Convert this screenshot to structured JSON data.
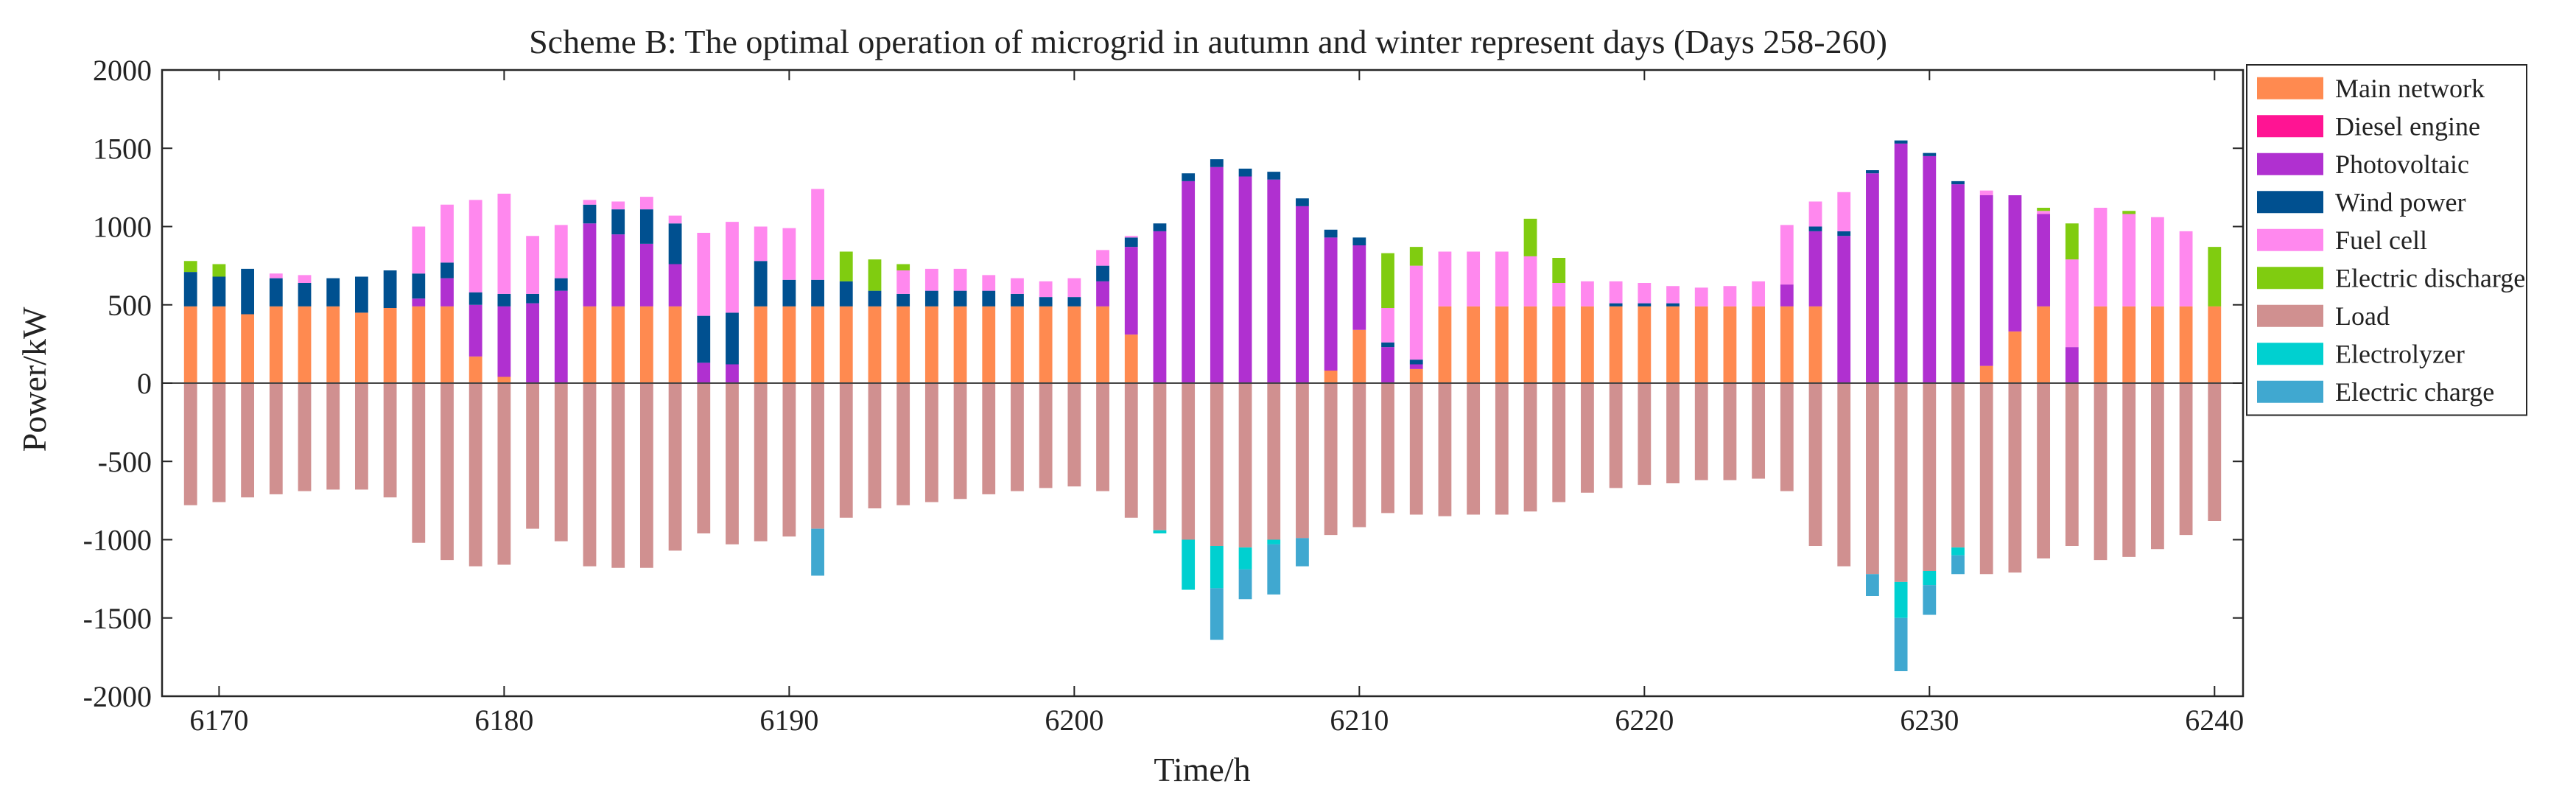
{
  "chart_data": {
    "type": "bar",
    "stacked": true,
    "title": "Scheme B: The optimal operation of microgrid in autumn and winter represent days (Days 258-260)",
    "xlabel": "Time/h",
    "ylabel": "Power/kW",
    "xlim": [
      6168,
      6241
    ],
    "ylim": [
      -2000,
      2000
    ],
    "xticks": [
      6170,
      6180,
      6190,
      6200,
      6210,
      6220,
      6230,
      6240
    ],
    "yticks": [
      2000,
      1500,
      1000,
      500,
      0,
      -500,
      -1000,
      -1500,
      -2000
    ],
    "legend_position": "top-right",
    "x": [
      6169,
      6170,
      6171,
      6172,
      6173,
      6174,
      6175,
      6176,
      6177,
      6178,
      6179,
      6180,
      6181,
      6182,
      6183,
      6184,
      6185,
      6186,
      6187,
      6188,
      6189,
      6190,
      6191,
      6192,
      6193,
      6194,
      6195,
      6196,
      6197,
      6198,
      6199,
      6200,
      6201,
      6202,
      6203,
      6204,
      6205,
      6206,
      6207,
      6208,
      6209,
      6210,
      6211,
      6212,
      6213,
      6214,
      6215,
      6216,
      6217,
      6218,
      6219,
      6220,
      6221,
      6222,
      6223,
      6224,
      6225,
      6226,
      6227,
      6228,
      6229,
      6230,
      6231,
      6232,
      6233,
      6234,
      6235,
      6236,
      6237,
      6238,
      6239,
      6240
    ],
    "series": [
      {
        "name": "Main network",
        "color": "#FF8A50",
        "values": [
          490,
          490,
          440,
          490,
          490,
          490,
          450,
          480,
          490,
          490,
          170,
          40,
          0,
          0,
          490,
          490,
          490,
          490,
          0,
          0,
          490,
          490,
          490,
          490,
          490,
          490,
          490,
          490,
          490,
          490,
          490,
          490,
          490,
          310,
          0,
          0,
          0,
          0,
          0,
          0,
          80,
          340,
          0,
          90,
          490,
          490,
          490,
          490,
          490,
          490,
          490,
          490,
          490,
          490,
          490,
          490,
          490,
          490,
          0,
          0,
          0,
          0,
          0,
          110,
          330,
          490,
          0,
          490,
          490,
          490,
          490,
          490
        ]
      },
      {
        "name": "Diesel engine",
        "color": "#FF1493",
        "values": [
          0,
          0,
          0,
          0,
          0,
          0,
          0,
          0,
          0,
          0,
          0,
          0,
          0,
          0,
          0,
          0,
          0,
          0,
          0,
          0,
          0,
          0,
          0,
          0,
          0,
          0,
          0,
          0,
          0,
          0,
          0,
          0,
          0,
          0,
          0,
          0,
          0,
          0,
          0,
          0,
          0,
          0,
          0,
          0,
          0,
          0,
          0,
          0,
          0,
          0,
          0,
          0,
          0,
          0,
          0,
          0,
          0,
          0,
          0,
          0,
          0,
          0,
          0,
          0,
          0,
          0,
          0,
          0,
          0,
          0,
          0,
          0
        ]
      },
      {
        "name": "Photovoltaic",
        "color": "#B030D0",
        "values": [
          0,
          0,
          0,
          0,
          0,
          0,
          0,
          0,
          50,
          180,
          330,
          450,
          510,
          590,
          530,
          460,
          400,
          270,
          130,
          120,
          0,
          0,
          0,
          0,
          0,
          0,
          0,
          0,
          0,
          0,
          0,
          0,
          160,
          560,
          970,
          1290,
          1380,
          1320,
          1300,
          1130,
          850,
          540,
          230,
          30,
          0,
          0,
          0,
          0,
          0,
          0,
          0,
          0,
          0,
          0,
          0,
          0,
          140,
          480,
          940,
          1340,
          1530,
          1450,
          1270,
          1090,
          870,
          590,
          230,
          0,
          0,
          0,
          0,
          0
        ]
      },
      {
        "name": "Wind power",
        "color": "#005090",
        "values": [
          220,
          190,
          290,
          180,
          150,
          180,
          230,
          240,
          160,
          100,
          80,
          80,
          60,
          80,
          120,
          160,
          220,
          260,
          300,
          330,
          290,
          170,
          170,
          160,
          100,
          80,
          100,
          100,
          100,
          80,
          60,
          60,
          100,
          60,
          50,
          50,
          50,
          50,
          50,
          50,
          50,
          50,
          30,
          30,
          0,
          0,
          0,
          0,
          0,
          0,
          20,
          20,
          20,
          0,
          0,
          0,
          0,
          30,
          30,
          20,
          20,
          20,
          20,
          0,
          0,
          0,
          0,
          0,
          0,
          0,
          0,
          0
        ]
      },
      {
        "name": "Fuel cell",
        "color": "#FF88EE",
        "values": [
          0,
          0,
          0,
          30,
          50,
          0,
          0,
          0,
          300,
          370,
          590,
          640,
          370,
          340,
          30,
          50,
          80,
          50,
          530,
          580,
          220,
          330,
          580,
          0,
          0,
          150,
          140,
          140,
          100,
          100,
          100,
          120,
          100,
          10,
          0,
          0,
          0,
          0,
          0,
          0,
          0,
          0,
          220,
          600,
          350,
          350,
          350,
          320,
          150,
          160,
          140,
          130,
          110,
          120,
          130,
          160,
          380,
          160,
          250,
          0,
          0,
          0,
          0,
          30,
          0,
          20,
          560,
          630,
          590,
          570,
          480,
          0
        ]
      },
      {
        "name": "Electric discharge",
        "color": "#80CC10",
        "values": [
          70,
          80,
          0,
          0,
          0,
          0,
          0,
          0,
          0,
          0,
          0,
          0,
          0,
          0,
          0,
          0,
          0,
          0,
          0,
          0,
          0,
          0,
          0,
          190,
          200,
          40,
          0,
          0,
          0,
          0,
          0,
          0,
          0,
          0,
          0,
          0,
          0,
          0,
          0,
          0,
          0,
          0,
          350,
          120,
          0,
          0,
          0,
          240,
          160,
          0,
          0,
          0,
          0,
          0,
          0,
          0,
          0,
          0,
          0,
          0,
          0,
          0,
          0,
          0,
          0,
          20,
          230,
          0,
          20,
          0,
          0,
          380
        ]
      },
      {
        "name": "Load",
        "color": "#D09090",
        "values": [
          -780,
          -760,
          -730,
          -710,
          -690,
          -680,
          -680,
          -730,
          -1020,
          -1130,
          -1170,
          -1160,
          -930,
          -1010,
          -1170,
          -1180,
          -1180,
          -1070,
          -960,
          -1030,
          -1010,
          -980,
          -930,
          -860,
          -800,
          -780,
          -760,
          -740,
          -710,
          -690,
          -670,
          -660,
          -690,
          -860,
          -940,
          -1000,
          -1040,
          -1050,
          -1000,
          -990,
          -970,
          -920,
          -830,
          -840,
          -850,
          -840,
          -840,
          -820,
          -760,
          -700,
          -670,
          -650,
          -640,
          -620,
          -620,
          -610,
          -690,
          -1040,
          -1170,
          -1220,
          -1270,
          -1200,
          -1050,
          -1220,
          -1210,
          -1120,
          -1040,
          -1130,
          -1110,
          -1060,
          -970,
          -880
        ]
      },
      {
        "name": "Electrolyzer",
        "color": "#00D0D0",
        "values": [
          0,
          0,
          0,
          0,
          0,
          0,
          0,
          0,
          0,
          0,
          0,
          0,
          0,
          0,
          0,
          0,
          0,
          0,
          0,
          0,
          0,
          0,
          0,
          0,
          0,
          0,
          0,
          0,
          0,
          0,
          0,
          0,
          0,
          0,
          -20,
          -320,
          -270,
          -140,
          -30,
          0,
          0,
          0,
          0,
          0,
          0,
          0,
          0,
          0,
          0,
          0,
          0,
          0,
          0,
          0,
          0,
          0,
          0,
          0,
          0,
          0,
          -230,
          -90,
          -50,
          0,
          0,
          0,
          0,
          0,
          0,
          0,
          0,
          0
        ]
      },
      {
        "name": "Electric charge",
        "color": "#40A8D0",
        "values": [
          0,
          0,
          0,
          0,
          0,
          0,
          0,
          0,
          0,
          0,
          0,
          0,
          0,
          0,
          0,
          0,
          0,
          0,
          0,
          0,
          0,
          0,
          -300,
          0,
          0,
          0,
          0,
          0,
          0,
          0,
          0,
          0,
          0,
          0,
          0,
          0,
          -330,
          -190,
          -320,
          -180,
          0,
          0,
          0,
          0,
          0,
          0,
          0,
          0,
          0,
          0,
          0,
          0,
          0,
          0,
          0,
          0,
          0,
          0,
          0,
          -140,
          -340,
          -190,
          -120,
          0,
          0,
          0,
          0,
          0,
          0,
          0,
          0,
          0
        ]
      }
    ]
  }
}
